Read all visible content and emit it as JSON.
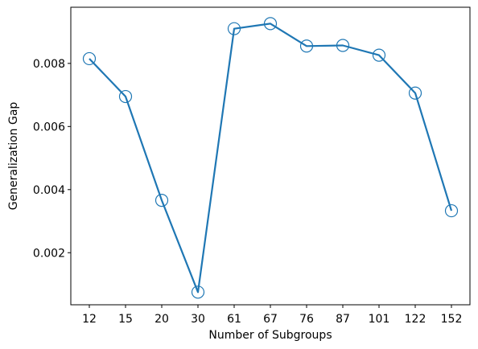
{
  "chart_data": {
    "type": "line",
    "xlabel": "Number of Subgroups",
    "ylabel": "Generalization Gap",
    "categories": [
      "12",
      "15",
      "20",
      "30",
      "61",
      "67",
      "76",
      "87",
      "101",
      "122",
      "152"
    ],
    "series": [
      {
        "values": [
          0.00815,
          0.00695,
          0.00366,
          0.00075,
          0.0091,
          0.00926,
          0.00855,
          0.00857,
          0.00826,
          0.00706,
          0.00333
        ],
        "color": "#1f77b4",
        "marker": "hollow-circle"
      }
    ],
    "ylim": [
      0.00035,
      0.00978
    ],
    "yticks": [
      0.002,
      0.004,
      0.006,
      0.008
    ],
    "ytick_labels": [
      "0.002",
      "0.004",
      "0.006",
      "0.008"
    ],
    "grid": false,
    "legend": "none"
  }
}
